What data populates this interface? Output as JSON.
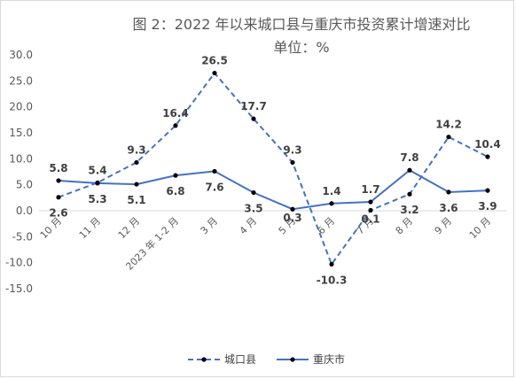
{
  "chart_data": {
    "type": "line",
    "title": "图 2：2022 年以来城口县与重庆市投资累计增速对比",
    "subtitle": "单位：%",
    "categories": [
      "10 月",
      "11 月",
      "12 月",
      "2023 年 1-2 月",
      "3 月",
      "4 月",
      "5 月",
      "6 月",
      "7 月",
      "8 月",
      "9 月",
      "10 月"
    ],
    "series": [
      {
        "name": "城口县",
        "values": [
          2.6,
          5.4,
          9.3,
          16.4,
          26.5,
          17.7,
          9.3,
          -10.3,
          0.1,
          3.2,
          14.2,
          10.4
        ],
        "labels": [
          "2.6",
          "5.4",
          "9.3",
          "16.4",
          "26.5",
          "17.7",
          "9.3",
          "-10.3",
          "0.1",
          "3.2",
          "14.2",
          "10.4"
        ],
        "style": "dashed",
        "color": "#4472c4"
      },
      {
        "name": "重庆市",
        "values": [
          5.8,
          5.3,
          5.1,
          6.8,
          7.6,
          3.5,
          0.3,
          1.4,
          1.7,
          7.8,
          3.6,
          3.9
        ],
        "labels": [
          "5.8",
          "5.3",
          "5.1",
          "6.8",
          "7.6",
          "3.5",
          "0.3",
          "1.4",
          "1.7",
          "7.8",
          "3.6",
          "3.9"
        ],
        "style": "solid",
        "color": "#4472c4"
      }
    ],
    "yticks": [
      "30.0",
      "25.0",
      "20.0",
      "15.0",
      "10.0",
      "5.0",
      "0.0",
      "-5.0",
      "-10.0",
      "-15.0"
    ],
    "ylim": [
      -15,
      30
    ],
    "grid": false,
    "legend": "bottom"
  }
}
